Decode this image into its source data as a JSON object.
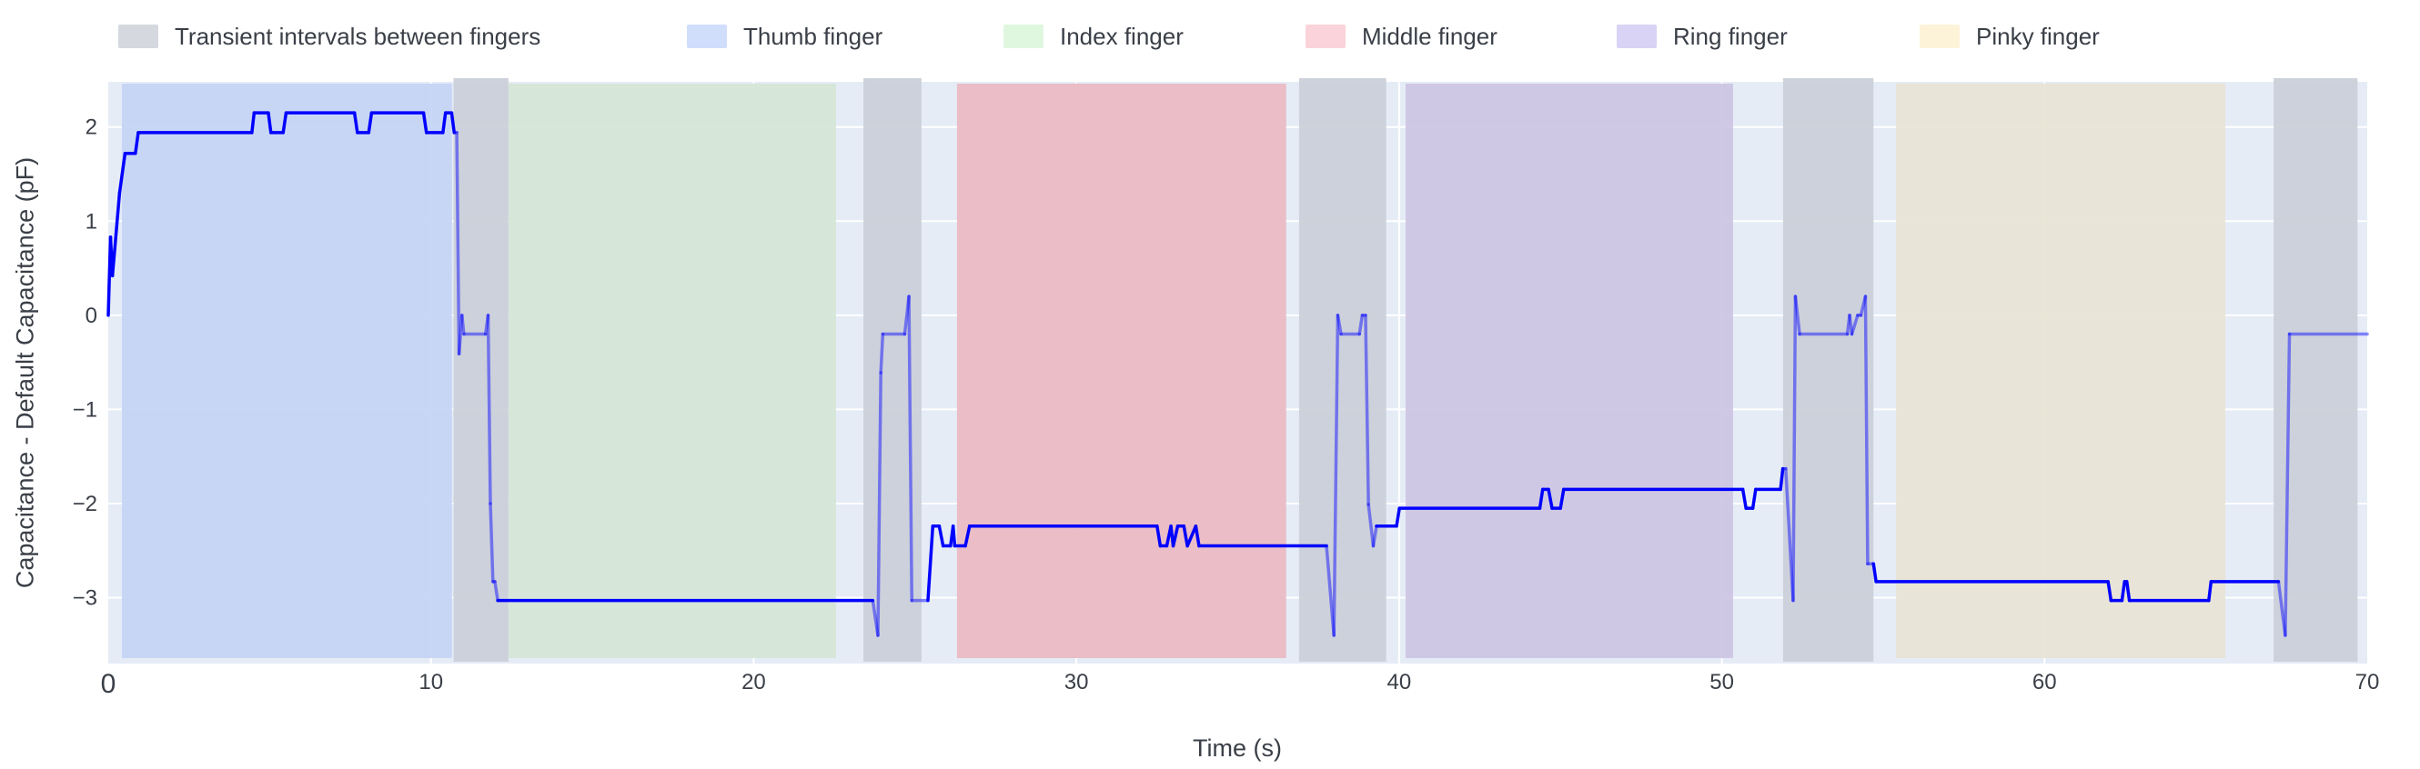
{
  "chart_data": {
    "type": "line",
    "title": "",
    "xlabel": "Time (s)",
    "ylabel": "Capacitance - Default Capacitance (pF)",
    "xlim": [
      0,
      70
    ],
    "ylim": [
      -3.7,
      2.48
    ],
    "xticks": [
      0,
      10,
      20,
      30,
      40,
      50,
      60,
      70
    ],
    "yticks": [
      -3,
      -2,
      -1,
      0,
      1,
      2
    ],
    "grid": true,
    "legend_position": "top",
    "line_color": "#0000ff",
    "plot_background": "#e5ecf6",
    "legend": [
      {
        "label": "Transient intervals between fingers",
        "color": "#d5d8de"
      },
      {
        "label": "Thumb finger",
        "color": "#d0defb"
      },
      {
        "label": "Index finger",
        "color": "#dff7df"
      },
      {
        "label": "Middle finger",
        "color": "#fbd3da"
      },
      {
        "label": "Ring finger",
        "color": "#d9d3f5"
      },
      {
        "label": "Pinky finger",
        "color": "#fdf3d9"
      }
    ],
    "regions": [
      {
        "kind": "Thumb finger",
        "start": 0.42,
        "end": 10.65,
        "color": "#c6d5f5"
      },
      {
        "kind": "Transient intervals between fingers",
        "start": 10.7,
        "end": 12.4,
        "color": "#cbd0d9"
      },
      {
        "kind": "Index finger",
        "start": 12.4,
        "end": 22.55,
        "color": "#d5e6d7"
      },
      {
        "kind": "Transient intervals between fingers",
        "start": 23.4,
        "end": 25.2,
        "color": "#cbd0d9"
      },
      {
        "kind": "Middle finger",
        "start": 26.3,
        "end": 36.5,
        "color": "#eabbc4"
      },
      {
        "kind": "Transient intervals between fingers",
        "start": 36.9,
        "end": 39.6,
        "color": "#cbd0d9"
      },
      {
        "kind": "Ring finger",
        "start": 40.2,
        "end": 50.35,
        "color": "#cdc6e4"
      },
      {
        "kind": "Transient intervals between fingers",
        "start": 51.9,
        "end": 54.7,
        "color": "#cbd0d9"
      },
      {
        "kind": "Pinky finger",
        "start": 55.4,
        "end": 65.6,
        "color": "#e8e4d5"
      },
      {
        "kind": "Transient intervals between fingers",
        "start": 67.1,
        "end": 69.7,
        "color": "#cbd0d9"
      }
    ],
    "series": [
      {
        "x": [
          0,
          0.07,
          0.13,
          0.35,
          0.52,
          0.84,
          0.93,
          4.45,
          4.52,
          4.96,
          5.04,
          5.42,
          5.51,
          7.63,
          7.72,
          8.07,
          8.16,
          9.77,
          9.86,
          10.37,
          10.45,
          10.64,
          10.72,
          10.8,
          10.87,
          10.96,
          11.02,
          11.69,
          11.77,
          11.84,
          11.92,
          11.98,
          12.07,
          23.69,
          23.85,
          23.94,
          24.0,
          24.68,
          24.81,
          24.9,
          25.4,
          25.55,
          25.75,
          25.87,
          26.1,
          26.18,
          26.23,
          26.56,
          26.69,
          32.5,
          32.6,
          32.8,
          32.93,
          33.0,
          33.14,
          33.33,
          33.44,
          33.7,
          33.8,
          37.75,
          37.98,
          38.1,
          38.2,
          38.77,
          38.86,
          38.96,
          39.05,
          39.2,
          39.3,
          39.92,
          40.01,
          44.36,
          44.45,
          44.63,
          44.74,
          45.0,
          45.1,
          50.65,
          50.75,
          50.96,
          51.05,
          51.82,
          51.89,
          51.98,
          52.21,
          52.28,
          52.41,
          53.89,
          53.96,
          54.03,
          54.21,
          54.31,
          54.45,
          54.52,
          54.7,
          54.78,
          61.97,
          62.06,
          62.4,
          62.48,
          62.55,
          62.63,
          65.09,
          65.16,
          67.25,
          67.46,
          67.59,
          70.0
        ],
        "y": [
          0,
          0.83,
          0.42,
          1.3,
          1.72,
          1.72,
          1.94,
          1.94,
          2.15,
          2.15,
          1.94,
          1.94,
          2.15,
          2.15,
          1.94,
          1.94,
          2.15,
          2.15,
          1.94,
          1.94,
          2.15,
          2.15,
          1.94,
          1.94,
          -0.41,
          0,
          -0.2,
          -0.2,
          0,
          -2.0,
          -2.83,
          -2.83,
          -3.03,
          -3.03,
          -3.4,
          -0.61,
          -0.2,
          -0.2,
          0.2,
          -3.03,
          -3.03,
          -2.24,
          -2.24,
          -2.45,
          -2.45,
          -2.24,
          -2.45,
          -2.45,
          -2.24,
          -2.24,
          -2.45,
          -2.45,
          -2.24,
          -2.45,
          -2.24,
          -2.24,
          -2.45,
          -2.24,
          -2.45,
          -2.45,
          -3.4,
          0,
          -0.2,
          -0.2,
          0,
          0,
          -2.01,
          -2.45,
          -2.24,
          -2.24,
          -2.05,
          -2.05,
          -1.85,
          -1.85,
          -2.05,
          -2.05,
          -1.85,
          -1.85,
          -2.05,
          -2.05,
          -1.85,
          -1.85,
          -1.63,
          -1.63,
          -3.03,
          0.2,
          -0.2,
          -0.2,
          0,
          -0.2,
          0,
          0,
          0.2,
          -2.64,
          -2.64,
          -2.83,
          -2.83,
          -3.03,
          -3.03,
          -2.83,
          -2.83,
          -3.03,
          -3.03,
          -2.83,
          -2.83,
          -3.4,
          -0.2,
          -0.2
        ]
      }
    ]
  }
}
